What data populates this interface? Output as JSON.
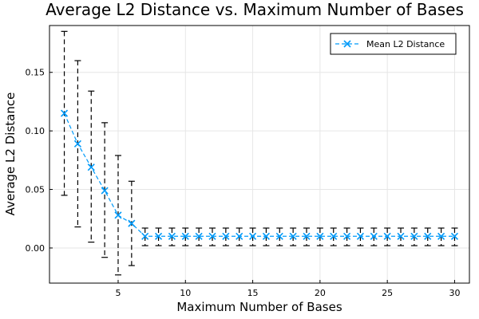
{
  "chart_data": {
    "type": "line",
    "title": "Average L2 Distance vs. Maximum Number of Bases",
    "xlabel": "Maximum Number of Bases",
    "ylabel": "Average L2 Distance",
    "xlim": [
      -0.1,
      31.1
    ],
    "ylim": [
      -0.03,
      0.19
    ],
    "xticks": [
      5,
      10,
      15,
      20,
      25,
      30
    ],
    "yticks": [
      0.0,
      0.05,
      0.1,
      0.15
    ],
    "ytick_labels": [
      "0.00",
      "0.05",
      "0.10",
      "0.15"
    ],
    "grid": true,
    "legend_position": "top-right",
    "series": [
      {
        "name": "Mean L2 Distance",
        "color": "#009af9",
        "marker": "x",
        "x": [
          1,
          2,
          3,
          4,
          5,
          6,
          7,
          8,
          9,
          10,
          11,
          12,
          13,
          14,
          15,
          16,
          17,
          18,
          19,
          20,
          21,
          22,
          23,
          24,
          25,
          26,
          27,
          28,
          29,
          30
        ],
        "values": [
          0.115,
          0.089,
          0.069,
          0.049,
          0.028,
          0.021,
          0.01,
          0.01,
          0.01,
          0.01,
          0.01,
          0.01,
          0.01,
          0.01,
          0.01,
          0.01,
          0.01,
          0.01,
          0.01,
          0.01,
          0.01,
          0.01,
          0.01,
          0.01,
          0.01,
          0.01,
          0.01,
          0.01,
          0.01,
          0.01
        ],
        "error_low": [
          0.045,
          0.018,
          0.005,
          -0.008,
          -0.023,
          -0.015,
          0.002,
          0.002,
          0.002,
          0.002,
          0.002,
          0.002,
          0.002,
          0.002,
          0.002,
          0.002,
          0.002,
          0.002,
          0.002,
          0.002,
          0.002,
          0.002,
          0.002,
          0.002,
          0.002,
          0.002,
          0.002,
          0.002,
          0.002,
          0.002
        ],
        "error_high": [
          0.185,
          0.16,
          0.134,
          0.107,
          0.079,
          0.057,
          0.017,
          0.017,
          0.017,
          0.017,
          0.017,
          0.017,
          0.017,
          0.017,
          0.017,
          0.017,
          0.017,
          0.017,
          0.017,
          0.017,
          0.017,
          0.017,
          0.017,
          0.017,
          0.017,
          0.017,
          0.017,
          0.017,
          0.017,
          0.017
        ]
      }
    ]
  }
}
